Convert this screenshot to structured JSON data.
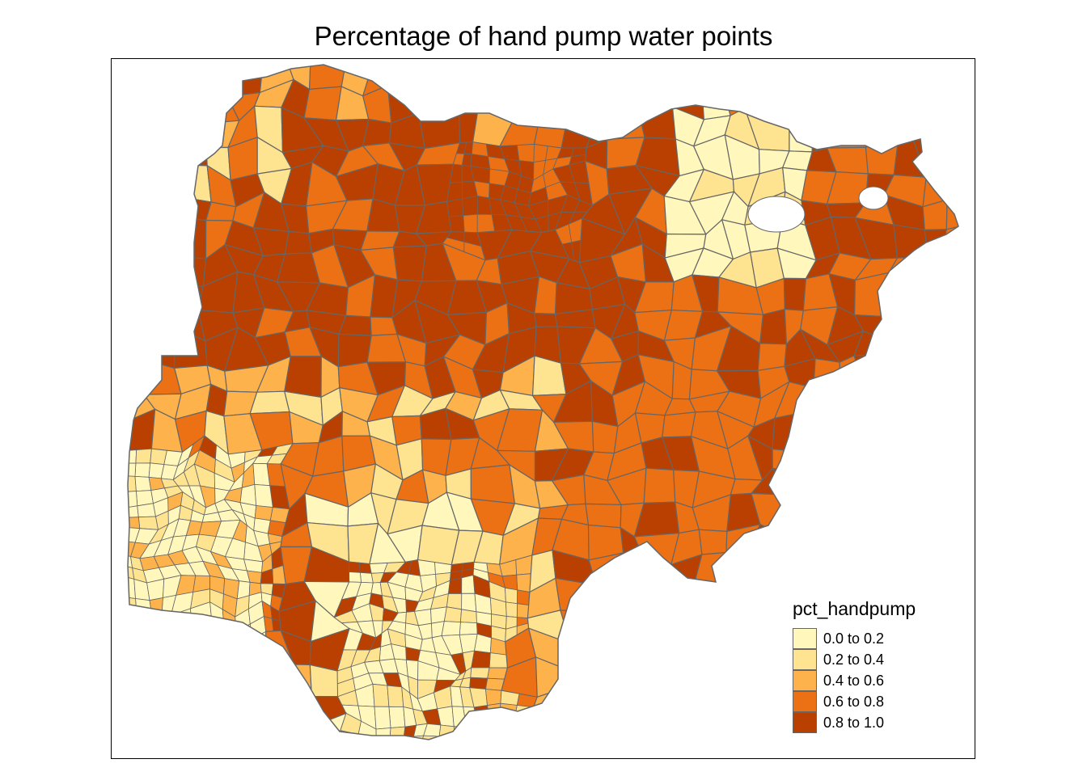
{
  "title": "Percentage of hand pump water points",
  "legend": {
    "title": "pct_handpump",
    "classes": [
      {
        "label": "0.0 to 0.2",
        "color": "#FFF7BC"
      },
      {
        "label": "0.2 to 0.4",
        "color": "#FEE391"
      },
      {
        "label": "0.4 to 0.6",
        "color": "#FEB24C"
      },
      {
        "label": "0.6 to 0.8",
        "color": "#EC7014"
      },
      {
        "label": "0.8 to 1.0",
        "color": "#B94000"
      }
    ]
  },
  "border_color": "#666666",
  "no_data_color": "#FFFFFF"
}
